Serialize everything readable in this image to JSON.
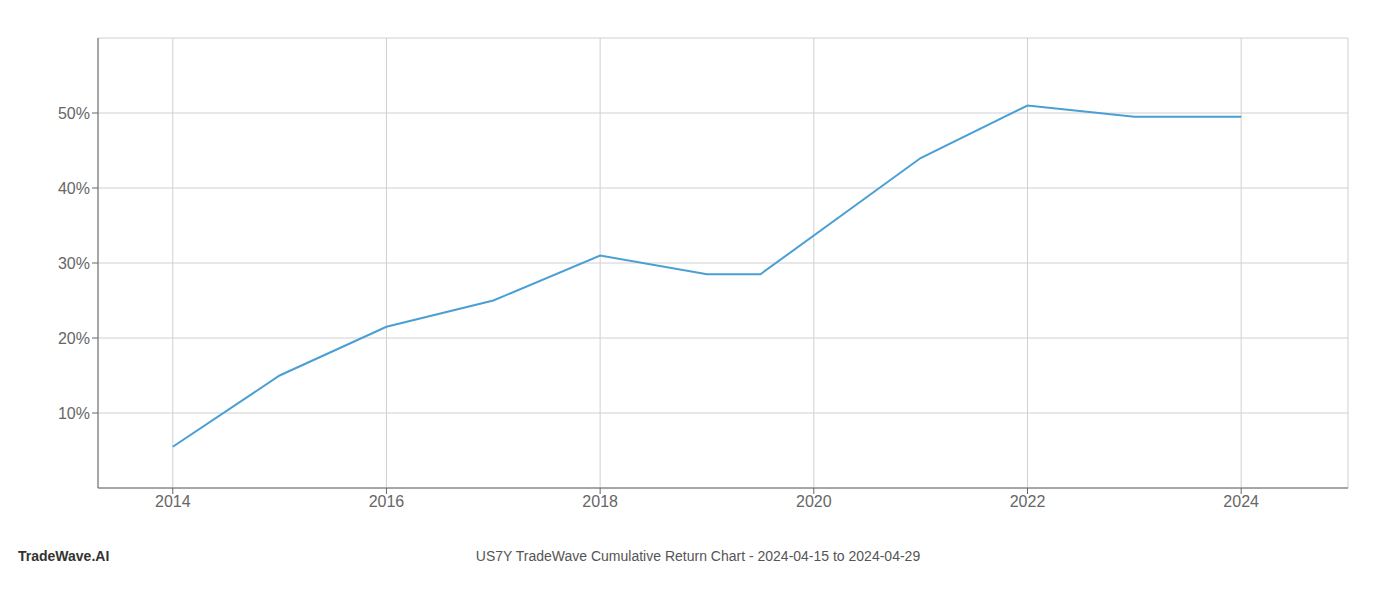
{
  "chart_data": {
    "type": "line",
    "title": "US7Y TradeWave Cumulative Return Chart - 2024-04-15 to 2024-04-29",
    "annotations": [
      "TradeWave.AI"
    ],
    "x": [
      2014,
      2015,
      2016,
      2017,
      2018,
      2019,
      2019.5,
      2021,
      2022,
      2023,
      2024
    ],
    "values": [
      5.5,
      15.0,
      21.5,
      25.0,
      31.0,
      28.5,
      28.5,
      44.0,
      51.0,
      49.5,
      49.5
    ],
    "color": "#4a9fd4",
    "xlim": [
      2013.3,
      2025.0
    ],
    "ylim": [
      0,
      60
    ],
    "xticks": [
      2014,
      2016,
      2018,
      2020,
      2022,
      2024
    ],
    "yticks": [
      {
        "value": 10,
        "label": "10%"
      },
      {
        "value": 20,
        "label": "20%"
      },
      {
        "value": 30,
        "label": "30%"
      },
      {
        "value": 40,
        "label": "40%"
      },
      {
        "value": 50,
        "label": "50%"
      }
    ],
    "grid": true
  }
}
